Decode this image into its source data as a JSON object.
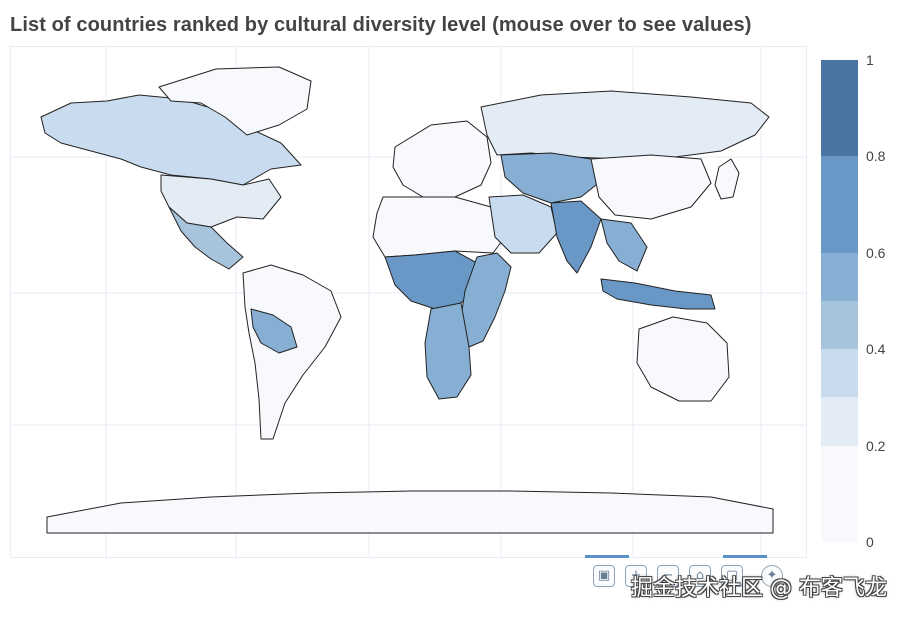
{
  "title": "List of countries ranked by cultural diversity level (mouse over to see values)",
  "colorscale": [
    {
      "from": 0.0,
      "to": 0.1,
      "color": "#f7f9fc"
    },
    {
      "from": 0.1,
      "to": 0.2,
      "color": "#f7f9fc"
    },
    {
      "from": 0.2,
      "to": 0.3,
      "color": "#e3ebf4"
    },
    {
      "from": 0.3,
      "to": 0.4,
      "color": "#c9dcef"
    },
    {
      "from": 0.4,
      "to": 0.5,
      "color": "#a8c4dd"
    },
    {
      "from": 0.5,
      "to": 0.6,
      "color": "#86afd3"
    },
    {
      "from": 0.6,
      "to": 0.7,
      "color": "#6998c6"
    },
    {
      "from": 0.7,
      "to": 0.8,
      "color": "#6998c6"
    },
    {
      "from": 0.8,
      "to": 0.9,
      "color": "#4a74a2"
    },
    {
      "from": 0.9,
      "to": 1.0,
      "color": "#4a74a2"
    }
  ],
  "colorbar": {
    "ticks": [
      "1",
      "0.8",
      "0.6",
      "0.4",
      "0.2",
      "0"
    ]
  },
  "map_regions": [
    {
      "name": "north-america",
      "value": 0.4
    },
    {
      "name": "usa",
      "value": 0.3
    },
    {
      "name": "mexico",
      "value": 0.5
    },
    {
      "name": "south-america",
      "value": 0.1
    },
    {
      "name": "peru-bolivia",
      "value": 0.6
    },
    {
      "name": "europe",
      "value": 0.2
    },
    {
      "name": "russia",
      "value": 0.3
    },
    {
      "name": "north-africa",
      "value": 0.1
    },
    {
      "name": "central-africa",
      "value": 0.7
    },
    {
      "name": "east-africa",
      "value": 0.6
    },
    {
      "name": "southern-africa",
      "value": 0.6
    },
    {
      "name": "middle-east",
      "value": 0.4
    },
    {
      "name": "central-asia",
      "value": 0.6
    },
    {
      "name": "india",
      "value": 0.7
    },
    {
      "name": "china",
      "value": 0.2
    },
    {
      "name": "southeast-asia",
      "value": 0.6
    },
    {
      "name": "indonesia",
      "value": 0.7
    },
    {
      "name": "japan",
      "value": 0.1
    },
    {
      "name": "australia",
      "value": 0.2
    },
    {
      "name": "greenland",
      "value": 0.1
    },
    {
      "name": "antarctica",
      "value": 0.0
    }
  ],
  "toolbar": {
    "icons": [
      "camera-icon",
      "zoom-in-icon",
      "zoom-out-icon",
      "reset-icon",
      "plotly-logo-icon"
    ]
  },
  "watermark": "掘金技术社区 @ 布客飞龙"
}
